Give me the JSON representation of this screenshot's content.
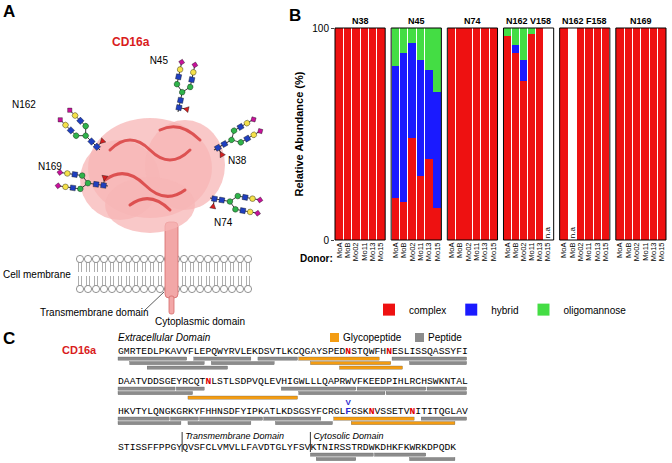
{
  "panel_a": {
    "letter": "A",
    "protein": "CD16a",
    "sites": [
      "N162",
      "N169",
      "N45",
      "N38",
      "N74"
    ],
    "membrane": "Cell membrane",
    "transmembrane": "Transmembrane domain",
    "cytoplasmic": "Cytoplasmic domain"
  },
  "panel_b": {
    "letter": "B",
    "missing_label": "n.a"
  },
  "chart_data": [
    {
      "type": "bar",
      "stacked": true,
      "title": "N38",
      "y_label": "Relative Abundance (%)",
      "x_label": "Donor:",
      "legend": "bottom",
      "categories": [
        "MoA",
        "MoB",
        "Mo02",
        "Mo11",
        "Mo13",
        "Mo15"
      ],
      "series": [
        {
          "name": "complex",
          "color": "#ee1111",
          "values": [
            100,
            100,
            100,
            100,
            100,
            100
          ]
        },
        {
          "name": "hybrid",
          "color": "#1a1aff",
          "values": [
            0,
            0,
            0,
            0,
            0,
            0
          ]
        },
        {
          "name": "oligomannose",
          "color": "#44dd44",
          "values": [
            0,
            0,
            0,
            0,
            0,
            0
          ]
        }
      ],
      "ylim": [
        0,
        100
      ],
      "yticks": [
        0,
        100
      ]
    },
    {
      "type": "bar",
      "stacked": true,
      "title": "N45",
      "categories": [
        "MoA",
        "MoB",
        "Mo02",
        "Mo11",
        "Mo13",
        "Mo15"
      ],
      "series": [
        {
          "name": "complex",
          "color": "#ee1111",
          "values": [
            20,
            18,
            48,
            30,
            38,
            15
          ]
        },
        {
          "name": "hybrid",
          "color": "#1a1aff",
          "values": [
            62,
            70,
            45,
            55,
            42,
            55
          ]
        },
        {
          "name": "oligomannose",
          "color": "#44dd44",
          "values": [
            18,
            12,
            7,
            15,
            20,
            30
          ]
        }
      ],
      "ylim": [
        0,
        100
      ],
      "yticks": [
        0,
        100
      ]
    },
    {
      "type": "bar",
      "stacked": true,
      "title": "N74",
      "categories": [
        "MoA",
        "MoB",
        "Mo02",
        "Mo11",
        "Mo13",
        "Mo15"
      ],
      "series": [
        {
          "name": "complex",
          "color": "#ee1111",
          "values": [
            100,
            100,
            100,
            100,
            100,
            100
          ]
        },
        {
          "name": "hybrid",
          "color": "#1a1aff",
          "values": [
            0,
            0,
            0,
            0,
            0,
            0
          ]
        },
        {
          "name": "oligomannose",
          "color": "#44dd44",
          "values": [
            0,
            0,
            0,
            0,
            0,
            0
          ]
        }
      ],
      "ylim": [
        0,
        100
      ],
      "yticks": [
        0,
        100
      ]
    },
    {
      "type": "bar",
      "stacked": true,
      "title": "N162 V158",
      "categories": [
        "MoA",
        "MoB",
        "Mo02",
        "Mo11",
        "Mo13",
        "Mo15"
      ],
      "series": [
        {
          "name": "complex",
          "color": "#ee1111",
          "values": [
            96,
            88,
            75,
            97,
            100,
            null
          ]
        },
        {
          "name": "hybrid",
          "color": "#1a1aff",
          "values": [
            0,
            4,
            10,
            0,
            0,
            null
          ]
        },
        {
          "name": "oligomannose",
          "color": "#44dd44",
          "values": [
            4,
            8,
            15,
            3,
            0,
            null
          ]
        }
      ],
      "ylim": [
        0,
        100
      ],
      "yticks": [
        0,
        100
      ]
    },
    {
      "type": "bar",
      "stacked": true,
      "title": "N162 F158",
      "categories": [
        "MoA",
        "MoB",
        "Mo02",
        "Mo11",
        "Mo13",
        "Mo15"
      ],
      "series": [
        {
          "name": "complex",
          "color": "#ee1111",
          "values": [
            100,
            null,
            100,
            100,
            100,
            100
          ]
        },
        {
          "name": "hybrid",
          "color": "#1a1aff",
          "values": [
            0,
            null,
            0,
            0,
            0,
            0
          ]
        },
        {
          "name": "oligomannose",
          "color": "#44dd44",
          "values": [
            0,
            null,
            0,
            0,
            0,
            0
          ]
        }
      ],
      "ylim": [
        0,
        100
      ],
      "yticks": [
        0,
        100
      ]
    },
    {
      "type": "bar",
      "stacked": true,
      "title": "N169",
      "categories": [
        "MoA",
        "MoB",
        "Mo02",
        "Mo11",
        "Mo13",
        "Mo15"
      ],
      "series": [
        {
          "name": "complex",
          "color": "#ee1111",
          "values": [
            100,
            100,
            100,
            100,
            100,
            100
          ]
        },
        {
          "name": "hybrid",
          "color": "#1a1aff",
          "values": [
            0,
            0,
            0,
            0,
            0,
            0
          ]
        },
        {
          "name": "oligomannose",
          "color": "#44dd44",
          "values": [
            0,
            0,
            0,
            0,
            0,
            0
          ]
        }
      ],
      "ylim": [
        0,
        100
      ],
      "yticks": [
        0,
        100
      ]
    }
  ],
  "panel_c": {
    "letter": "C",
    "protein": "CD16a",
    "extracellular": "Extracellular Domain",
    "transmembrane": "Transmembrane Domain",
    "cytosolic": "Cytosolic Domain",
    "legend": [
      {
        "label": "Glycopeptide",
        "color": "#f39c12"
      },
      {
        "label": "Peptide",
        "color": "#8c8c8c"
      }
    ],
    "lines": [
      {
        "sequence": "GMRTEDLPKAVVFLEPQWYRVLEKDSVTLKCQGAYSPEDNSTQWFHNESLISSQASSYFI",
        "glycosites": [
          39,
          46
        ],
        "peptide": [
          [
            0,
            11
          ],
          [
            13,
            22
          ],
          [
            24,
            30
          ],
          [
            47,
            59
          ],
          [
            2,
            14
          ],
          [
            16,
            26
          ],
          [
            50,
            59
          ],
          [
            5,
            18
          ]
        ],
        "glycopeptide": [
          [
            31,
            44
          ],
          [
            38,
            48
          ],
          [
            33,
            46
          ]
        ]
      },
      {
        "sequence": "DAATVDDSGEYRCQTNLSTLSDPVQLEVHIGWLLLQAPRWVFKEEDPIHLRCHSWKNTAL",
        "glycosites": [
          15
        ],
        "peptide": [
          [
            0,
            9
          ],
          [
            10,
            14
          ],
          [
            28,
            40
          ],
          [
            41,
            52
          ],
          [
            53,
            59
          ],
          [
            31,
            45
          ],
          [
            46,
            59
          ],
          [
            0,
            12
          ]
        ],
        "glycopeptide": [
          [
            12,
            30
          ]
        ]
      },
      {
        "sequence": "HKVTYLQNGKGRKYFHHNSDFYIPKATLKDSGSYFCRGLFGSKNVSSETVNITITQGLAV",
        "glycosites": [
          43,
          50
        ],
        "peptide": [
          [
            0,
            8
          ],
          [
            9,
            13
          ],
          [
            14,
            24
          ],
          [
            25,
            34
          ],
          [
            52,
            59
          ],
          [
            0,
            10
          ],
          [
            12,
            22
          ],
          [
            27,
            36
          ]
        ],
        "glycopeptide": [
          [
            37,
            50
          ],
          [
            40,
            57
          ]
        ]
      },
      {
        "sequence": "STISSFFPPGYQVSFCLVMVLLFAVDTGLYFSVKTNIRSSTRDWKDHKFKWRKDPQDK",
        "glycosites": [],
        "peptide": [
          [
            33,
            43
          ],
          [
            44,
            52
          ],
          [
            34,
            40
          ],
          [
            50,
            57
          ]
        ],
        "glycopeptide": []
      }
    ],
    "variant": {
      "line": 2,
      "position": 39,
      "label": "V"
    },
    "domain_boundaries": {
      "line": 3,
      "transmembrane_start": 11,
      "cytosolic_start": 33
    }
  }
}
